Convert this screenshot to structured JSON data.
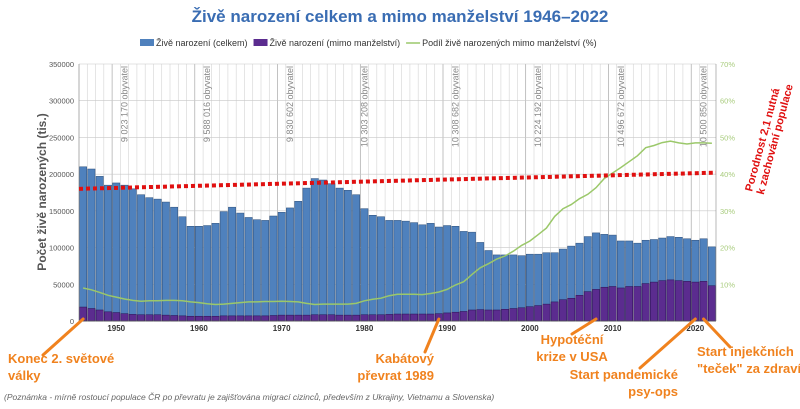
{
  "chart_data": {
    "type": "bar",
    "title": "Živě narození celkem a mimo manželství 1946–2022",
    "ylabel": "Počet živě narozených (tis.)",
    "ylim": [
      0,
      350000
    ],
    "y_ticks": [
      "0",
      "50000",
      "100000",
      "150000",
      "200000",
      "250000",
      "300000",
      "350000"
    ],
    "y2lim": [
      0,
      70
    ],
    "y2_ticks": [
      "10%",
      "20%",
      "30%",
      "40%",
      "50%",
      "60%",
      "70%"
    ],
    "x_ticks": [
      "1950",
      "1960",
      "1970",
      "1980",
      "1990",
      "2000",
      "2010",
      "2020"
    ],
    "grid": true,
    "legend_placement": "top",
    "colors": {
      "total": "#4f81bd",
      "extramarital": "#5b2c8f",
      "share": "#9bc86a",
      "threshold": "#e01010",
      "annotation": "#f0821e",
      "title": "#3a6db3"
    },
    "x": [
      1946,
      1947,
      1948,
      1949,
      1950,
      1951,
      1952,
      1953,
      1954,
      1955,
      1956,
      1957,
      1958,
      1959,
      1960,
      1961,
      1962,
      1963,
      1964,
      1965,
      1966,
      1967,
      1968,
      1969,
      1970,
      1971,
      1972,
      1973,
      1974,
      1975,
      1976,
      1977,
      1978,
      1979,
      1980,
      1981,
      1982,
      1983,
      1984,
      1985,
      1986,
      1987,
      1988,
      1989,
      1990,
      1991,
      1992,
      1993,
      1994,
      1995,
      1996,
      1997,
      1998,
      1999,
      2000,
      2001,
      2002,
      2003,
      2004,
      2005,
      2006,
      2007,
      2008,
      2009,
      2010,
      2011,
      2012,
      2013,
      2014,
      2015,
      2016,
      2017,
      2018,
      2019,
      2020,
      2021,
      2022
    ],
    "series": [
      {
        "name": "Živě narození (celkem)",
        "type": "bar",
        "axis": "left",
        "values": [
          210000,
          207000,
          197000,
          185000,
          188000,
          185000,
          180000,
          172000,
          168000,
          166000,
          162000,
          155000,
          142000,
          129000,
          129000,
          130000,
          133000,
          149000,
          155000,
          147000,
          141000,
          138000,
          137000,
          143000,
          148000,
          154000,
          163000,
          181000,
          194000,
          192000,
          187000,
          181000,
          178000,
          172000,
          153000,
          144000,
          142000,
          137000,
          137000,
          136000,
          134000,
          131000,
          133000,
          128000,
          130000,
          129000,
          122000,
          121000,
          107000,
          96000,
          90000,
          90000,
          90000,
          89000,
          91000,
          91000,
          93000,
          93000,
          98000,
          102000,
          106000,
          115000,
          120000,
          118000,
          117000,
          109000,
          109000,
          106000,
          110000,
          111000,
          113000,
          115000,
          114000,
          112000,
          110000,
          112000,
          101000
        ]
      },
      {
        "name": "Živě narození (mimo manželství)",
        "type": "bar",
        "axis": "left",
        "values": [
          19000,
          17000,
          15000,
          12500,
          11500,
          10000,
          9000,
          8500,
          8500,
          8500,
          8000,
          7500,
          7000,
          6500,
          6500,
          6500,
          6500,
          7000,
          7000,
          7000,
          7000,
          7000,
          7000,
          7500,
          8000,
          8000,
          8000,
          8000,
          8500,
          8500,
          8500,
          8000,
          8000,
          8000,
          8500,
          8500,
          8500,
          9000,
          9500,
          9500,
          9500,
          9500,
          9500,
          10000,
          11000,
          12000,
          13000,
          15000,
          15500,
          15000,
          15000,
          16000,
          17000,
          18000,
          19500,
          21000,
          23000,
          26000,
          29000,
          31000,
          35000,
          40000,
          43000,
          46000,
          47000,
          45000,
          47000,
          47000,
          51000,
          53000,
          55000,
          56000,
          55000,
          54000,
          53000,
          54000,
          48000
        ]
      },
      {
        "name": "Podíl živě narozených mimo manželství (%)",
        "type": "line",
        "axis": "right",
        "values": [
          9,
          8.5,
          7.8,
          7,
          6.5,
          6,
          5.6,
          5.4,
          5.5,
          5.5,
          5.6,
          5.6,
          5.5,
          5.2,
          5,
          4.7,
          4.5,
          4.6,
          4.8,
          5,
          5.2,
          5.2,
          5.3,
          5.3,
          5.4,
          5.3,
          5.2,
          4.8,
          4.5,
          4.6,
          4.6,
          4.6,
          4.6,
          4.8,
          5.5,
          5.9,
          6.2,
          6.9,
          7.3,
          7.3,
          7.3,
          7.2,
          7.5,
          7.9,
          8.6,
          9.8,
          10.7,
          12.7,
          14.5,
          15.6,
          16.9,
          17.7,
          19,
          20.6,
          21.8,
          23.5,
          25.3,
          28.5,
          30.6,
          31.7,
          33.3,
          34.5,
          36.3,
          38.8,
          40.3,
          41.8,
          43.4,
          45,
          47.2,
          47.8,
          48.6,
          49,
          48.5,
          48.2,
          48.5,
          48.5,
          48.4
        ]
      }
    ],
    "reference_line": {
      "label_line1": "Porodnost 2,1 nutná",
      "label_line2": "k zachování populace",
      "start_value": 180000,
      "end_value": 202000
    },
    "population_labels": [
      {
        "year": 1951,
        "text": "9 023 170  obyvatel"
      },
      {
        "year": 1961,
        "text": "9 588 016  obyvatel"
      },
      {
        "year": 1971,
        "text": "9 830 602  obyvatel"
      },
      {
        "year": 1980,
        "text": "10 303 208  obyvatel"
      },
      {
        "year": 1991,
        "text": "10 308 682  obyvatel"
      },
      {
        "year": 2001,
        "text": "10 224 192  obyvatel"
      },
      {
        "year": 2011,
        "text": "10 496 672  obyvatel"
      },
      {
        "year": 2021,
        "text": "10 500 850  obyvatel"
      }
    ],
    "annotations": [
      {
        "year": 1946,
        "lines": [
          "Konec 2. světové",
          "války"
        ]
      },
      {
        "year": 1989,
        "lines": [
          "Kabátový",
          "převrat 1989"
        ]
      },
      {
        "year": 2008,
        "lines": [
          "Hypotéční",
          "krize v USA"
        ]
      },
      {
        "year": 2020,
        "lines": [
          "Start pandemické",
          "psy-ops"
        ]
      },
      {
        "year": 2021,
        "lines": [
          "Start injekčních",
          "\"teček\" za zdravím"
        ]
      }
    ],
    "note": "(Poznámka - mírně rostoucí populace  ČR po převratu je zajišťována migrací cizinců, především z Ukrajiny, Vietnamu a Slovenska)"
  }
}
